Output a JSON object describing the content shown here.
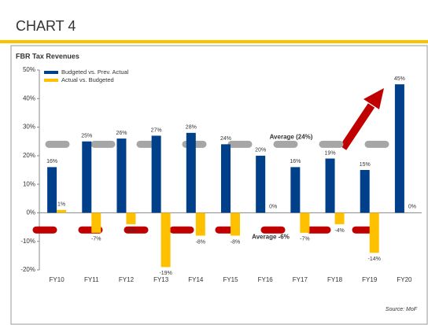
{
  "header": {
    "title": "CHART 4"
  },
  "chart_data": {
    "type": "bar",
    "title": "FBR Tax Revenues",
    "categories": [
      "FY10",
      "FY11",
      "FY12",
      "FY13",
      "FY14",
      "FY15",
      "FY16",
      "FY17",
      "FY18",
      "FY19",
      "FY20"
    ],
    "series": [
      {
        "name": "Budgeted vs. Prev. Actual",
        "color": "#003f8a",
        "values": [
          16,
          25,
          26,
          27,
          28,
          24,
          20,
          16,
          19,
          15,
          45
        ],
        "value_labels": [
          "16%",
          "25%",
          "26%",
          "27%",
          "28%",
          "24%",
          "20%",
          "16%",
          "19%",
          "15%",
          "45%"
        ]
      },
      {
        "name": "Actual vs. Budgeted",
        "color": "#ffc000",
        "values": [
          1,
          -7,
          -4,
          -19,
          -8,
          -8,
          0,
          -7,
          -4,
          -14,
          0
        ],
        "value_labels": [
          "1%",
          "-7%",
          "-4%",
          "-19%",
          "-8%",
          "-8%",
          "0%",
          "-7%",
          "-4%",
          "-14%",
          "0%"
        ]
      }
    ],
    "ylim": [
      -20,
      50
    ],
    "yticks": [
      {
        "value": -20,
        "label": "-20%"
      },
      {
        "value": -10,
        "label": "-10%"
      },
      {
        "value": 0,
        "label": "0%"
      },
      {
        "value": 10,
        "label": "10%"
      },
      {
        "value": 20,
        "label": "20%"
      },
      {
        "value": 30,
        "label": "30%"
      },
      {
        "value": 40,
        "label": "40%"
      },
      {
        "value": 50,
        "label": "50%"
      }
    ],
    "legend": "top-left",
    "annotations": [
      {
        "label": "Average (24%)",
        "value": 24,
        "color": "#a6a6a6"
      },
      {
        "label": "Average -6%",
        "value": -6,
        "color": "#c00000"
      }
    ],
    "source": "Source: MoF"
  }
}
